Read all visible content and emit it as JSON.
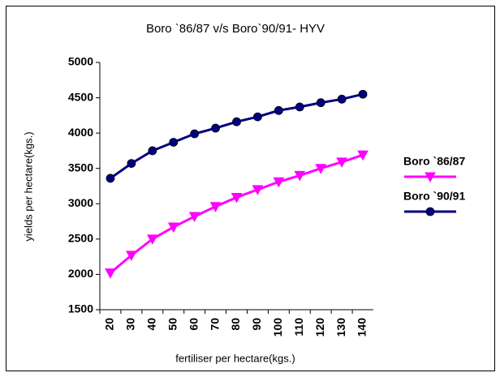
{
  "chart_data": {
    "type": "line",
    "title": "Boro `86/87 v/s Boro`90/91- HYV",
    "x_label": "fertiliser per hectare(kgs.)",
    "y_label": "yields per hectare(kgs.)",
    "categories": [
      "20",
      "30",
      "40",
      "50",
      "60",
      "70",
      "80",
      "90",
      "100",
      "110",
      "120",
      "130",
      "140"
    ],
    "series": [
      {
        "name": "Boro `86/87",
        "color": "#ff00ff",
        "marker": "triangle-down",
        "values": [
          2020,
          2270,
          2500,
          2670,
          2820,
          2960,
          3090,
          3200,
          3310,
          3400,
          3500,
          3590,
          3690
        ]
      },
      {
        "name": "Boro `90/91",
        "color": "#000080",
        "marker": "circle",
        "values": [
          3360,
          3570,
          3750,
          3870,
          3990,
          4070,
          4160,
          4230,
          4320,
          4370,
          4430,
          4480,
          4550
        ]
      }
    ],
    "ylim": [
      1500,
      5000
    ],
    "yticks": [
      1500,
      2000,
      2500,
      3000,
      3500,
      4000,
      4500,
      5000
    ],
    "grid": false,
    "legend": "right"
  }
}
